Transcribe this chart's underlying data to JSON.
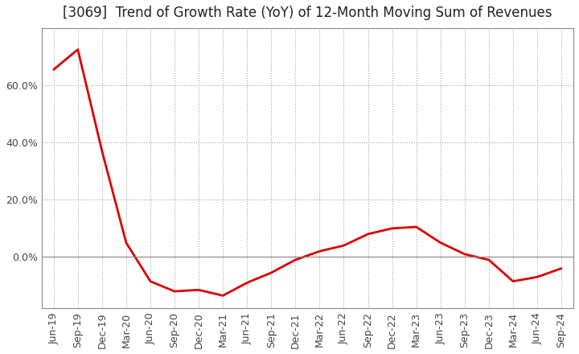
{
  "title": "[3069]  Trend of Growth Rate (YoY) of 12-Month Moving Sum of Revenues",
  "x_labels": [
    "Jun-19",
    "Sep-19",
    "Dec-19",
    "Mar-20",
    "Jun-20",
    "Sep-20",
    "Dec-20",
    "Mar-21",
    "Jun-21",
    "Sep-21",
    "Dec-21",
    "Mar-22",
    "Jun-22",
    "Sep-22",
    "Dec-22",
    "Mar-23",
    "Jun-23",
    "Sep-23",
    "Dec-23",
    "Mar-24",
    "Jun-24",
    "Sep-24"
  ],
  "y_values": [
    0.655,
    0.725,
    0.37,
    0.05,
    -0.085,
    -0.12,
    -0.115,
    -0.135,
    -0.09,
    -0.055,
    -0.01,
    0.02,
    0.04,
    0.08,
    0.1,
    0.105,
    0.05,
    0.01,
    -0.01,
    -0.085,
    -0.07,
    -0.04
  ],
  "line_color": "#dd0000",
  "line_width": 2.0,
  "background_color": "#ffffff",
  "grid_color": "#999999",
  "title_fontsize": 12,
  "tick_fontsize": 9,
  "ytick_vals": [
    0.0,
    0.2,
    0.4,
    0.6
  ],
  "ylim": [
    -0.18,
    0.8
  ],
  "fill_positive_color": "#f5c0c0",
  "fill_negative_color": "#f5c0c0"
}
